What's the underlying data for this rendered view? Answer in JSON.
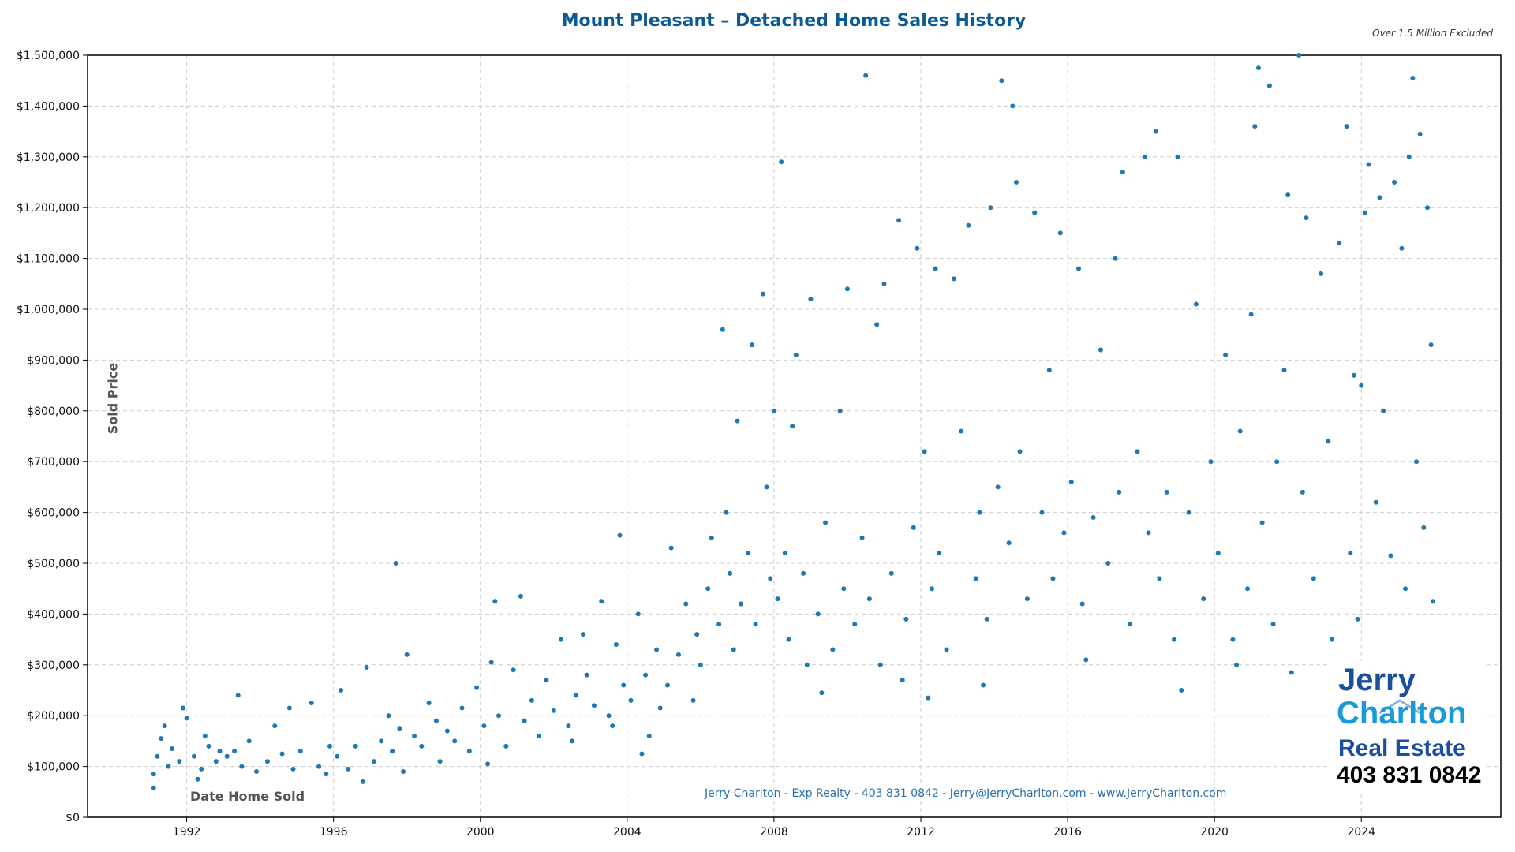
{
  "chart_data": {
    "type": "scatter",
    "title": "Mount Pleasant – Detached Home Sales History",
    "subtitle": "Over 1.5 Million Excluded",
    "xlabel": "Date Home Sold",
    "ylabel": "Sold Price",
    "xlim": [
      1989.3,
      2027.8
    ],
    "ylim": [
      0,
      1500000
    ],
    "xticks": [
      1992,
      1996,
      2000,
      2004,
      2008,
      2012,
      2016,
      2020,
      2024
    ],
    "yticks": [
      0,
      100000,
      200000,
      300000,
      400000,
      500000,
      600000,
      700000,
      800000,
      900000,
      1000000,
      1100000,
      1200000,
      1300000,
      1400000,
      1500000
    ],
    "ytick_labels": [
      "$0",
      "$100,000",
      "$200,000",
      "$300,000",
      "$400,000",
      "$500,000",
      "$600,000",
      "$700,000",
      "$800,000",
      "$900,000",
      "$1,000,000",
      "$1,100,000",
      "$1,200,000",
      "$1,300,000",
      "$1,400,000",
      "$1,500,000"
    ],
    "grid": true,
    "point_color": "#1f77b4",
    "points": [
      [
        1991.1,
        85000
      ],
      [
        1991.2,
        120000
      ],
      [
        1991.3,
        155000
      ],
      [
        1991.5,
        100000
      ],
      [
        1991.6,
        135000
      ],
      [
        1991.8,
        110000
      ],
      [
        1991.1,
        58000
      ],
      [
        1991.9,
        215000
      ],
      [
        1991.4,
        180000
      ],
      [
        1992.0,
        195000
      ],
      [
        1992.2,
        120000
      ],
      [
        1992.4,
        95000
      ],
      [
        1992.6,
        140000
      ],
      [
        1992.8,
        110000
      ],
      [
        1992.5,
        160000
      ],
      [
        1992.9,
        130000
      ],
      [
        1992.3,
        75000
      ],
      [
        1993.1,
        120000
      ],
      [
        1993.4,
        240000
      ],
      [
        1993.5,
        100000
      ],
      [
        1993.7,
        150000
      ],
      [
        1993.9,
        90000
      ],
      [
        1993.3,
        130000
      ],
      [
        1994.2,
        110000
      ],
      [
        1994.4,
        180000
      ],
      [
        1994.6,
        125000
      ],
      [
        1994.8,
        215000
      ],
      [
        1994.9,
        95000
      ],
      [
        1995.1,
        130000
      ],
      [
        1995.4,
        225000
      ],
      [
        1995.6,
        100000
      ],
      [
        1995.8,
        85000
      ],
      [
        1995.9,
        140000
      ],
      [
        1996.1,
        120000
      ],
      [
        1996.2,
        250000
      ],
      [
        1996.4,
        95000
      ],
      [
        1996.6,
        140000
      ],
      [
        1996.8,
        70000
      ],
      [
        1996.9,
        295000
      ],
      [
        1997.1,
        110000
      ],
      [
        1997.3,
        150000
      ],
      [
        1997.5,
        200000
      ],
      [
        1997.6,
        130000
      ],
      [
        1997.7,
        500000
      ],
      [
        1997.9,
        90000
      ],
      [
        1997.8,
        175000
      ],
      [
        1998.0,
        320000
      ],
      [
        1998.2,
        160000
      ],
      [
        1998.4,
        140000
      ],
      [
        1998.6,
        225000
      ],
      [
        1998.8,
        190000
      ],
      [
        1998.9,
        110000
      ],
      [
        1999.1,
        170000
      ],
      [
        1999.3,
        150000
      ],
      [
        1999.5,
        215000
      ],
      [
        1999.7,
        130000
      ],
      [
        1999.9,
        255000
      ],
      [
        2000.1,
        180000
      ],
      [
        2000.3,
        305000
      ],
      [
        2000.4,
        425000
      ],
      [
        2000.5,
        200000
      ],
      [
        2000.7,
        140000
      ],
      [
        2000.9,
        290000
      ],
      [
        2000.2,
        105000
      ],
      [
        2001.1,
        435000
      ],
      [
        2001.2,
        190000
      ],
      [
        2001.4,
        230000
      ],
      [
        2001.6,
        160000
      ],
      [
        2001.8,
        270000
      ],
      [
        2002.0,
        210000
      ],
      [
        2002.2,
        350000
      ],
      [
        2002.4,
        180000
      ],
      [
        2002.6,
        240000
      ],
      [
        2002.8,
        360000
      ],
      [
        2002.9,
        280000
      ],
      [
        2002.5,
        150000
      ],
      [
        2003.1,
        220000
      ],
      [
        2003.3,
        425000
      ],
      [
        2003.5,
        200000
      ],
      [
        2003.7,
        340000
      ],
      [
        2003.8,
        555000
      ],
      [
        2003.9,
        260000
      ],
      [
        2003.6,
        180000
      ],
      [
        2004.1,
        230000
      ],
      [
        2004.3,
        400000
      ],
      [
        2004.5,
        280000
      ],
      [
        2004.6,
        160000
      ],
      [
        2004.8,
        330000
      ],
      [
        2004.9,
        215000
      ],
      [
        2004.4,
        125000
      ],
      [
        2005.1,
        260000
      ],
      [
        2005.2,
        530000
      ],
      [
        2005.4,
        320000
      ],
      [
        2005.6,
        420000
      ],
      [
        2005.8,
        230000
      ],
      [
        2005.9,
        360000
      ],
      [
        2006.0,
        300000
      ],
      [
        2006.2,
        450000
      ],
      [
        2006.3,
        550000
      ],
      [
        2006.5,
        380000
      ],
      [
        2006.6,
        960000
      ],
      [
        2006.7,
        600000
      ],
      [
        2006.8,
        480000
      ],
      [
        2006.9,
        330000
      ],
      [
        2007.0,
        780000
      ],
      [
        2007.1,
        420000
      ],
      [
        2007.3,
        520000
      ],
      [
        2007.4,
        930000
      ],
      [
        2007.5,
        380000
      ],
      [
        2007.7,
        1030000
      ],
      [
        2007.8,
        650000
      ],
      [
        2007.9,
        470000
      ],
      [
        2008.0,
        800000
      ],
      [
        2008.1,
        430000
      ],
      [
        2008.2,
        1290000
      ],
      [
        2008.3,
        520000
      ],
      [
        2008.4,
        350000
      ],
      [
        2008.5,
        770000
      ],
      [
        2008.6,
        910000
      ],
      [
        2008.8,
        480000
      ],
      [
        2008.9,
        300000
      ],
      [
        2009.0,
        1020000
      ],
      [
        2009.2,
        400000
      ],
      [
        2009.4,
        580000
      ],
      [
        2009.6,
        330000
      ],
      [
        2009.8,
        800000
      ],
      [
        2009.9,
        450000
      ],
      [
        2009.3,
        245000
      ],
      [
        2010.0,
        1040000
      ],
      [
        2010.2,
        380000
      ],
      [
        2010.4,
        550000
      ],
      [
        2010.5,
        1460000
      ],
      [
        2010.6,
        430000
      ],
      [
        2010.8,
        970000
      ],
      [
        2010.9,
        300000
      ],
      [
        2011.0,
        1050000
      ],
      [
        2011.2,
        480000
      ],
      [
        2011.4,
        1175000
      ],
      [
        2011.6,
        390000
      ],
      [
        2011.8,
        570000
      ],
      [
        2011.9,
        1120000
      ],
      [
        2011.5,
        270000
      ],
      [
        2012.1,
        720000
      ],
      [
        2012.3,
        450000
      ],
      [
        2012.4,
        1080000
      ],
      [
        2012.5,
        520000
      ],
      [
        2012.7,
        330000
      ],
      [
        2012.9,
        1060000
      ],
      [
        2012.2,
        235000
      ],
      [
        2013.1,
        760000
      ],
      [
        2013.3,
        1165000
      ],
      [
        2013.5,
        470000
      ],
      [
        2013.6,
        600000
      ],
      [
        2013.8,
        390000
      ],
      [
        2013.9,
        1200000
      ],
      [
        2013.7,
        260000
      ],
      [
        2014.1,
        650000
      ],
      [
        2014.2,
        1450000
      ],
      [
        2014.4,
        540000
      ],
      [
        2014.5,
        1400000
      ],
      [
        2014.6,
        1250000
      ],
      [
        2014.7,
        720000
      ],
      [
        2014.9,
        430000
      ],
      [
        2015.1,
        1190000
      ],
      [
        2015.3,
        600000
      ],
      [
        2015.5,
        880000
      ],
      [
        2015.6,
        470000
      ],
      [
        2015.8,
        1150000
      ],
      [
        2015.9,
        560000
      ],
      [
        2016.1,
        660000
      ],
      [
        2016.3,
        1080000
      ],
      [
        2016.4,
        420000
      ],
      [
        2016.5,
        310000
      ],
      [
        2016.7,
        590000
      ],
      [
        2016.9,
        920000
      ],
      [
        2017.1,
        500000
      ],
      [
        2017.3,
        1100000
      ],
      [
        2017.4,
        640000
      ],
      [
        2017.5,
        1270000
      ],
      [
        2017.7,
        380000
      ],
      [
        2017.9,
        720000
      ],
      [
        2018.1,
        1300000
      ],
      [
        2018.2,
        560000
      ],
      [
        2018.4,
        1350000
      ],
      [
        2018.5,
        470000
      ],
      [
        2018.7,
        640000
      ],
      [
        2018.9,
        350000
      ],
      [
        2019.0,
        1300000
      ],
      [
        2019.1,
        250000
      ],
      [
        2019.3,
        600000
      ],
      [
        2019.5,
        1010000
      ],
      [
        2019.7,
        430000
      ],
      [
        2019.9,
        700000
      ],
      [
        2020.1,
        520000
      ],
      [
        2020.3,
        910000
      ],
      [
        2020.5,
        350000
      ],
      [
        2020.6,
        300000
      ],
      [
        2020.7,
        760000
      ],
      [
        2020.9,
        450000
      ],
      [
        2021.0,
        990000
      ],
      [
        2021.1,
        1360000
      ],
      [
        2021.2,
        1475000
      ],
      [
        2021.3,
        580000
      ],
      [
        2021.5,
        1440000
      ],
      [
        2021.6,
        380000
      ],
      [
        2021.7,
        700000
      ],
      [
        2021.9,
        880000
      ],
      [
        2022.0,
        1225000
      ],
      [
        2022.1,
        285000
      ],
      [
        2022.3,
        1500000
      ],
      [
        2022.4,
        640000
      ],
      [
        2022.5,
        1180000
      ],
      [
        2022.7,
        470000
      ],
      [
        2022.9,
        1070000
      ],
      [
        2023.1,
        740000
      ],
      [
        2023.2,
        350000
      ],
      [
        2023.4,
        1130000
      ],
      [
        2023.6,
        1360000
      ],
      [
        2023.7,
        520000
      ],
      [
        2023.8,
        870000
      ],
      [
        2023.9,
        390000
      ],
      [
        2024.0,
        850000
      ],
      [
        2024.1,
        1190000
      ],
      [
        2024.2,
        1285000
      ],
      [
        2024.4,
        620000
      ],
      [
        2024.5,
        1220000
      ],
      [
        2024.6,
        800000
      ],
      [
        2024.8,
        515000
      ],
      [
        2024.9,
        1250000
      ],
      [
        2025.1,
        1120000
      ],
      [
        2025.2,
        450000
      ],
      [
        2025.3,
        1300000
      ],
      [
        2025.4,
        1455000
      ],
      [
        2025.5,
        700000
      ],
      [
        2025.6,
        1345000
      ],
      [
        2025.7,
        570000
      ],
      [
        2025.8,
        1200000
      ],
      [
        2025.9,
        930000
      ],
      [
        2025.95,
        425000
      ]
    ]
  },
  "footer": "Jerry Charlton - Exp Realty - 403 831 0842 - Jerry@JerryCharlton.com - www.JerryCharlton.com",
  "logo": {
    "line1": "Jerry",
    "line2": "Charlton",
    "line3": "Real Estate",
    "phone": "403 831 0842"
  }
}
